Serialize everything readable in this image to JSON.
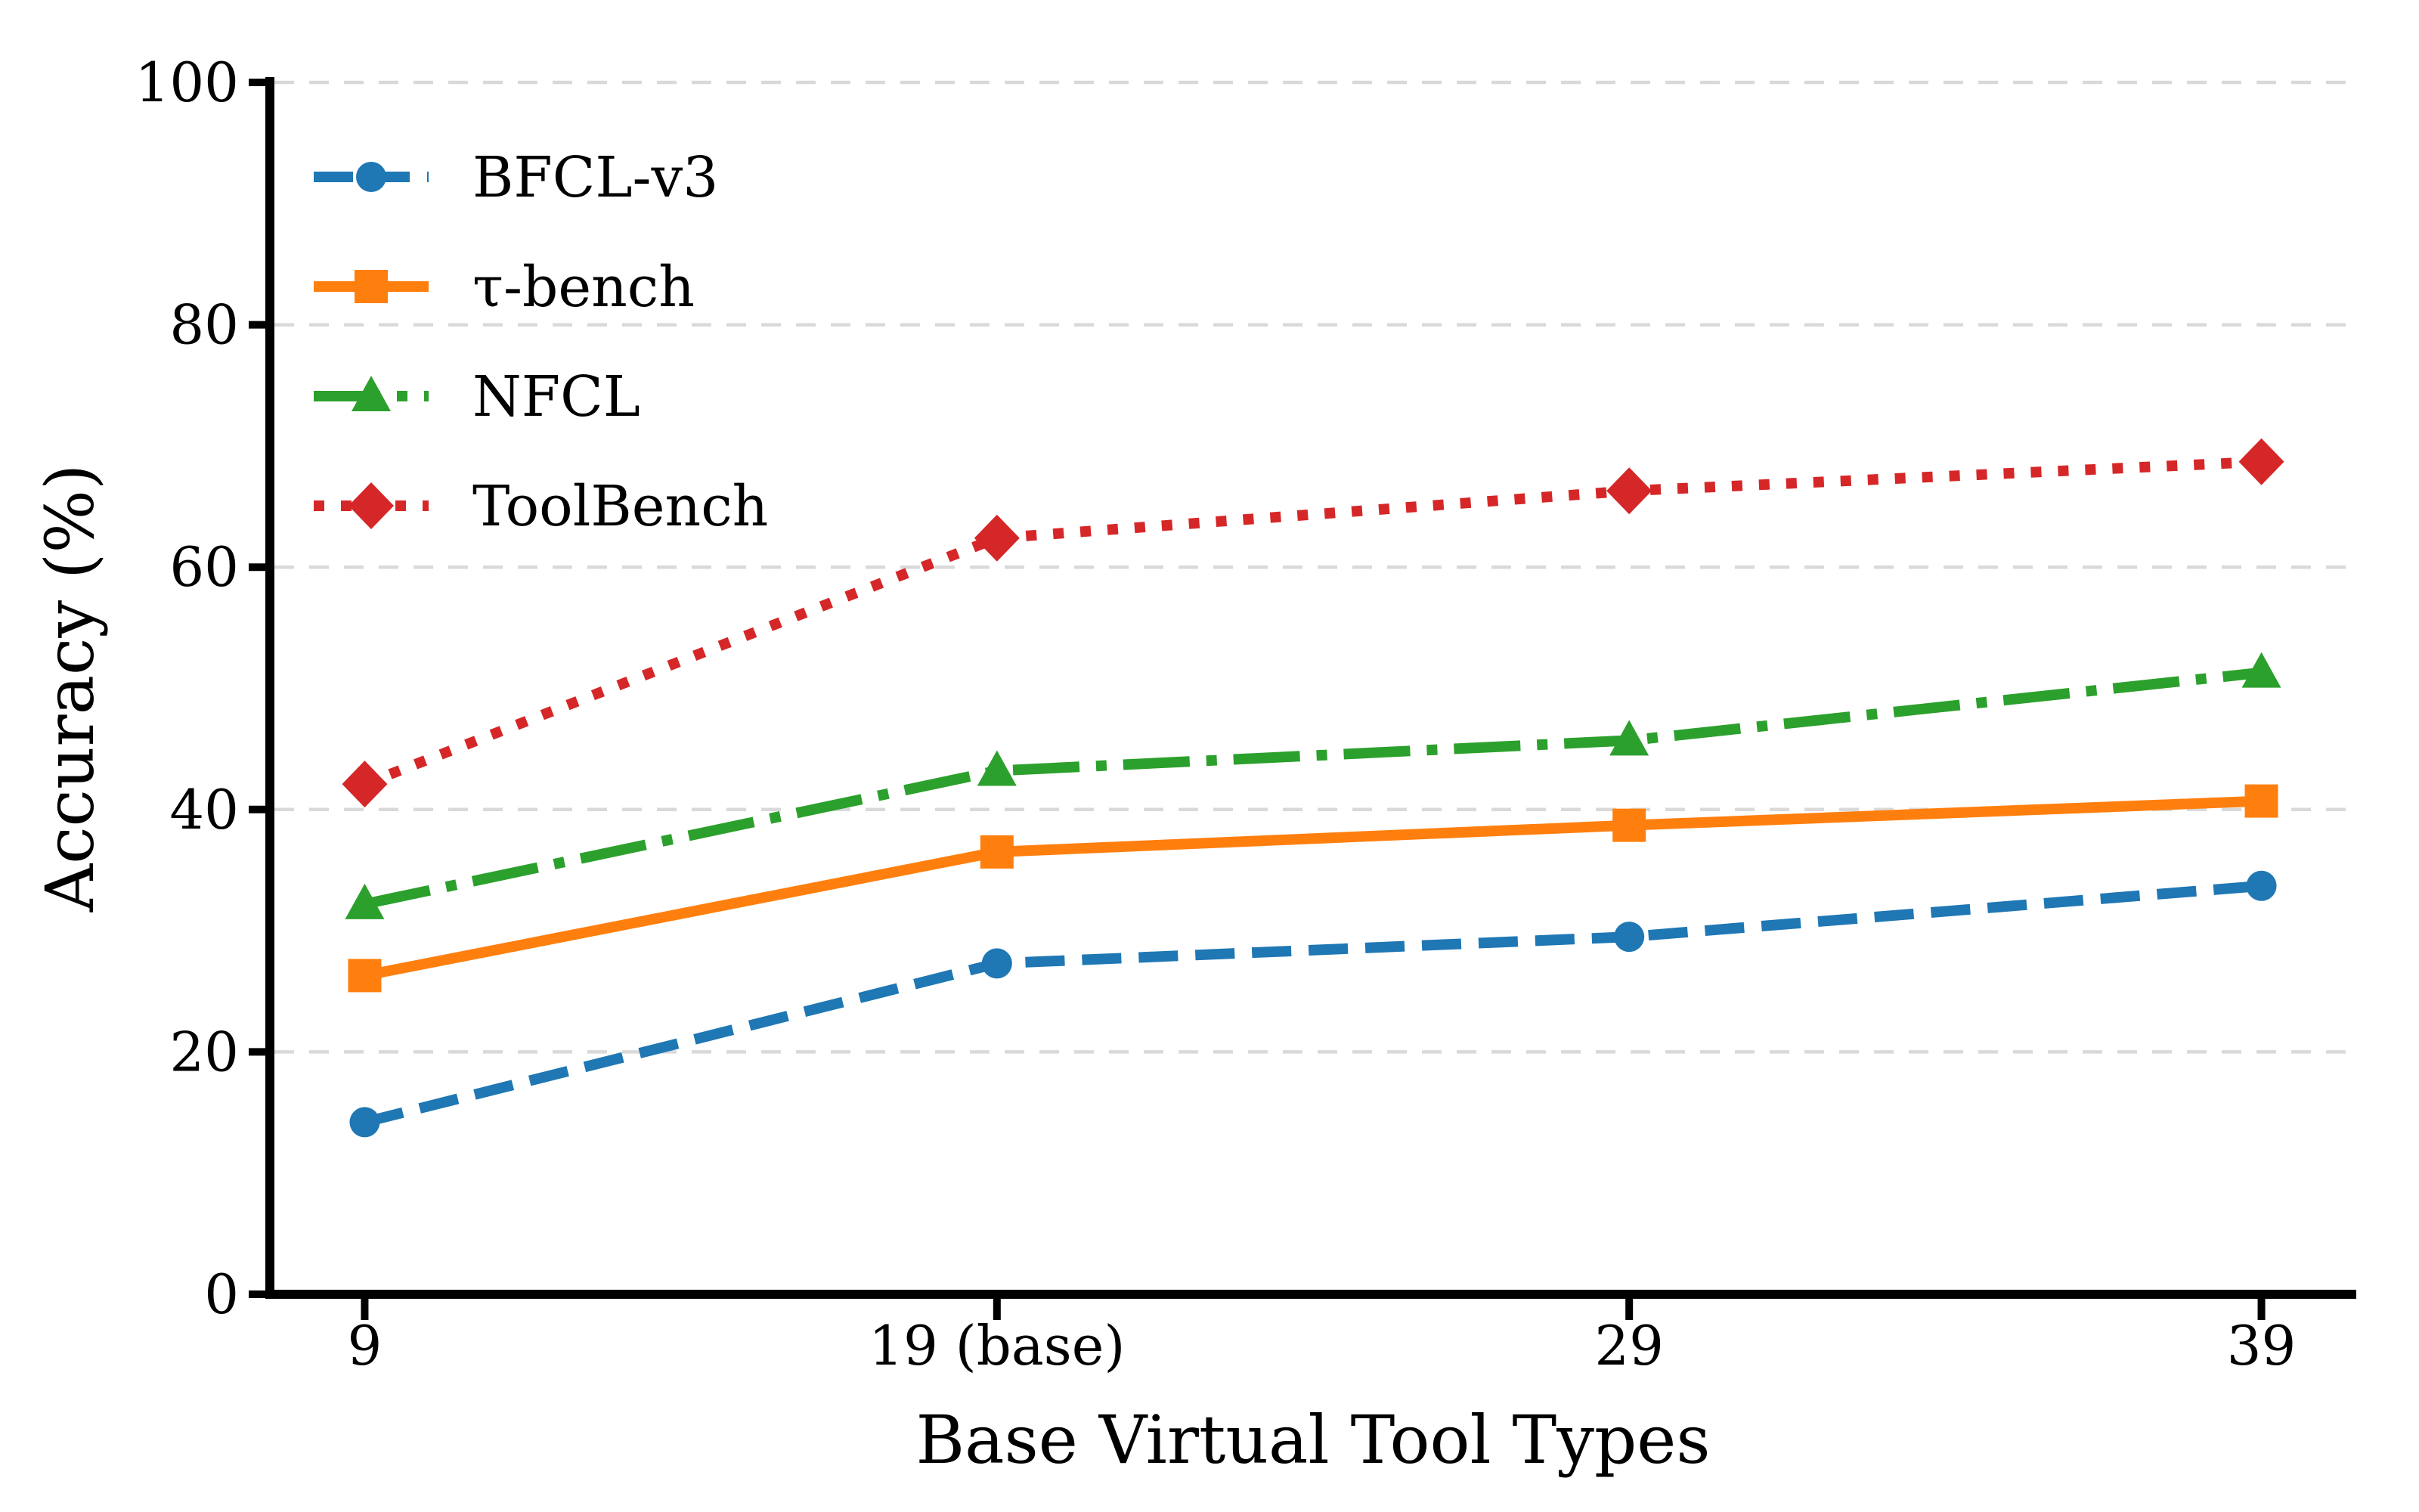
{
  "chart_data": {
    "type": "line",
    "title": "",
    "xlabel": "Base Virtual Tool Types",
    "ylabel": "Accuracy (%)",
    "categories": [
      "9",
      "19 (base)",
      "29",
      "39"
    ],
    "x_values": [
      9,
      19,
      29,
      39
    ],
    "xlim": [
      7.5,
      40.5
    ],
    "ylim": [
      0,
      100
    ],
    "y_ticks": [
      0,
      20,
      40,
      60,
      80,
      100
    ],
    "grid": "horizontal-dashed",
    "grid_color": "#d9d9d9",
    "background_color": "#ffffff",
    "axis_color": "#000000",
    "legend_position": "upper-left",
    "legend_frame": false,
    "series": [
      {
        "name": "BFCL-v3",
        "color": "#1f77b4",
        "marker": "circle",
        "linestyle": "dashed",
        "values": [
          14.2,
          27.3,
          29.5,
          33.7
        ]
      },
      {
        "name": "τ-bench",
        "color": "#ff7f0e",
        "marker": "square",
        "linestyle": "solid",
        "values": [
          26.3,
          36.5,
          38.7,
          40.7
        ]
      },
      {
        "name": "NFCL",
        "color": "#2ca02c",
        "marker": "triangle",
        "linestyle": "dashdot",
        "values": [
          32.2,
          43.2,
          45.7,
          51.3
        ]
      },
      {
        "name": "ToolBench",
        "color": "#d62728",
        "marker": "diamond",
        "linestyle": "dotted",
        "values": [
          42.1,
          62.4,
          66.3,
          68.7
        ]
      }
    ]
  }
}
